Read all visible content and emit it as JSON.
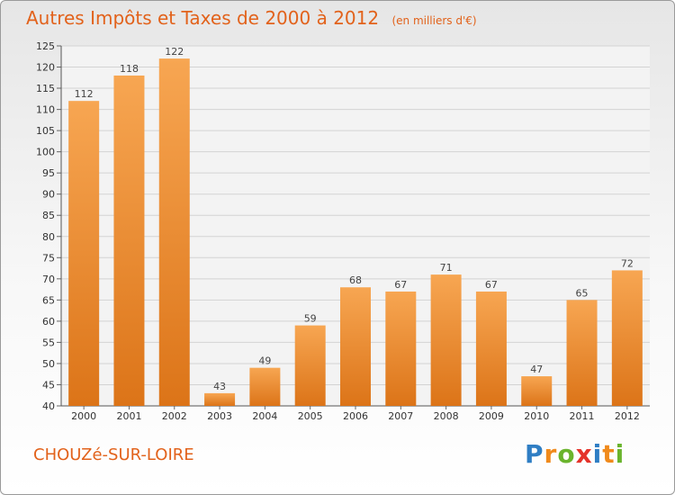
{
  "chart_data": {
    "type": "bar",
    "title": "Autres Impôts et Taxes de 2000 à 2012",
    "subtitle": "(en milliers d'€)",
    "categories": [
      "2000",
      "2001",
      "2002",
      "2003",
      "2004",
      "2005",
      "2006",
      "2007",
      "2008",
      "2009",
      "2010",
      "2011",
      "2012"
    ],
    "values": [
      112,
      118,
      122,
      43,
      49,
      59,
      68,
      67,
      71,
      67,
      47,
      65,
      72
    ],
    "ylim": [
      40,
      125
    ],
    "yticks": [
      40,
      45,
      50,
      55,
      60,
      65,
      70,
      75,
      80,
      85,
      90,
      95,
      100,
      105,
      110,
      115,
      120,
      125
    ],
    "grid": true,
    "bar_color_top": "#f7a652",
    "bar_color_bottom": "#dc7418",
    "label_color": "#444444"
  },
  "footer": {
    "place_name": "CHOUZé-SUR-LOIRE"
  },
  "logo": {
    "letters": [
      {
        "ch": "P",
        "color": "#2f7ec4"
      },
      {
        "ch": "r",
        "color": "#f08a1c"
      },
      {
        "ch": "o",
        "color": "#6ab42d"
      },
      {
        "ch": "x",
        "color": "#e5332a"
      },
      {
        "ch": "i",
        "color": "#2f7ec4"
      },
      {
        "ch": "t",
        "color": "#f08a1c"
      },
      {
        "ch": "i",
        "color": "#6ab42d"
      }
    ]
  }
}
